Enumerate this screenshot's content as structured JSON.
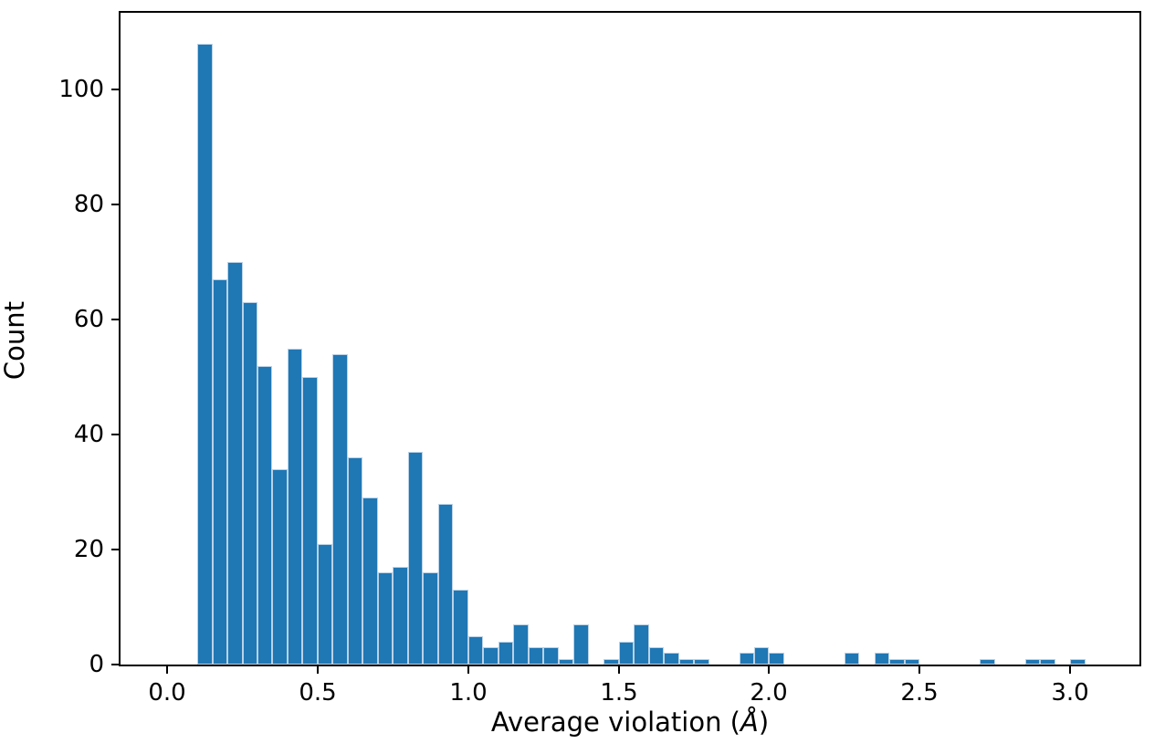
{
  "chart_data": {
    "type": "bar",
    "subtype": "histogram",
    "title": "",
    "xlabel": {
      "full": "Average violation (Å)",
      "prefix": "Average violation (",
      "symbol": "Å",
      "suffix": ")"
    },
    "ylabel": "Count",
    "bar_color": "#1f77b4",
    "bar_edge_color": "#bad2e6",
    "axis_color": "#000000",
    "background_color": "#ffffff",
    "grid": false,
    "legend_position": "none",
    "bin_width": 0.05,
    "bin_starts": [
      0.1,
      0.15,
      0.2,
      0.25,
      0.3,
      0.35,
      0.4,
      0.45,
      0.5,
      0.55,
      0.6,
      0.65,
      0.7,
      0.75,
      0.8,
      0.85,
      0.9,
      0.95,
      1.0,
      1.05,
      1.1,
      1.15,
      1.2,
      1.25,
      1.3,
      1.35,
      1.4,
      1.45,
      1.5,
      1.55,
      1.6,
      1.65,
      1.7,
      1.75,
      1.8,
      1.85,
      1.9,
      1.95,
      2.0,
      2.05,
      2.1,
      2.15,
      2.2,
      2.25,
      2.3,
      2.35,
      2.4,
      2.45,
      2.5,
      2.55,
      2.6,
      2.65,
      2.7,
      2.75,
      2.8,
      2.85,
      2.9,
      2.95,
      3.0
    ],
    "counts": [
      108,
      67,
      70,
      63,
      52,
      34,
      55,
      50,
      21,
      54,
      36,
      29,
      16,
      17,
      37,
      16,
      28,
      13,
      5,
      3,
      4,
      7,
      3,
      3,
      1,
      7,
      0,
      1,
      4,
      7,
      3,
      2,
      1,
      1,
      0,
      0,
      2,
      3,
      2,
      0,
      0,
      0,
      0,
      2,
      0,
      2,
      1,
      1,
      0,
      0,
      0,
      0,
      1,
      0,
      0,
      1,
      1,
      0,
      1
    ],
    "xlim": [
      -0.155,
      3.23
    ],
    "ylim": [
      0,
      113.4
    ],
    "x_ticks": [
      0.0,
      0.5,
      1.0,
      1.5,
      2.0,
      2.5,
      3.0
    ],
    "x_tick_labels": [
      "0.0",
      "0.5",
      "1.0",
      "1.5",
      "2.0",
      "2.5",
      "3.0"
    ],
    "y_ticks": [
      0,
      20,
      40,
      60,
      80,
      100
    ],
    "y_tick_labels": [
      "0",
      "20",
      "40",
      "60",
      "80",
      "100"
    ]
  }
}
